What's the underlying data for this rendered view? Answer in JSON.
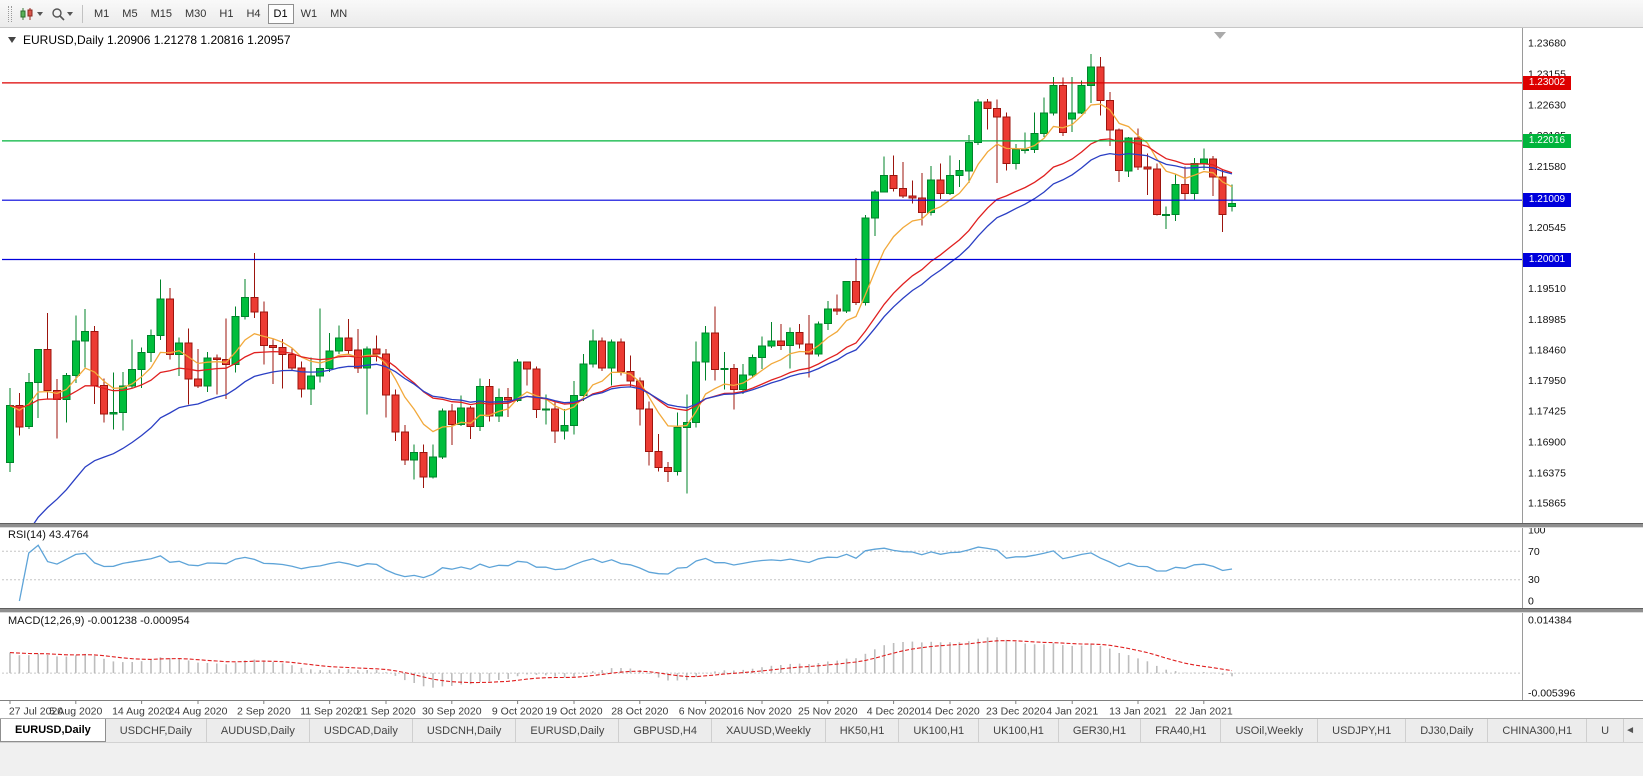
{
  "toolbar": {
    "timeframes": [
      {
        "label": "M1"
      },
      {
        "label": "M5"
      },
      {
        "label": "M15"
      },
      {
        "label": "M30"
      },
      {
        "label": "H1"
      },
      {
        "label": "H4"
      },
      {
        "label": "D1",
        "active": true
      },
      {
        "label": "W1"
      },
      {
        "label": "MN"
      }
    ]
  },
  "chart": {
    "title": "EURUSD,Daily  1.20906 1.21278 1.20816 1.20957",
    "symbol": "EURUSD",
    "period": "Daily",
    "ohlc": {
      "open": "1.20906",
      "high": "1.21278",
      "low": "1.20816",
      "close": "1.20957"
    },
    "price_axis": {
      "labels": [
        "1.23680",
        "1.23155",
        "1.22630",
        "1.22105",
        "1.21580",
        "1.21055",
        "1.20545",
        "1.20020",
        "1.19510",
        "1.18985",
        "1.18460",
        "1.17950",
        "1.17425",
        "1.16900",
        "1.16375",
        "1.15865"
      ]
    },
    "hlines": [
      {
        "label": "1.23002",
        "price": 1.23002,
        "color": "#DD0000"
      },
      {
        "label": "1.22016",
        "price": 1.22016,
        "color": "#00B43C"
      },
      {
        "label": "1.21009",
        "price": 1.21009,
        "color": "#0000DC"
      },
      {
        "label": "1.20001",
        "price": 1.20001,
        "color": "#0000DC"
      }
    ],
    "date_ticks": [
      {
        "label": "27 Jul 2020",
        "i": 0
      },
      {
        "label": "5 Aug 2020",
        "i": 7
      },
      {
        "label": "14 Aug 2020",
        "i": 14
      },
      {
        "label": "24 Aug 2020",
        "i": 20
      },
      {
        "label": "2 Sep 2020",
        "i": 27
      },
      {
        "label": "11 Sep 2020",
        "i": 34
      },
      {
        "label": "21 Sep 2020",
        "i": 40
      },
      {
        "label": "30 Sep 2020",
        "i": 47
      },
      {
        "label": "9 Oct 2020",
        "i": 54
      },
      {
        "label": "19 Oct 2020",
        "i": 60
      },
      {
        "label": "28 Oct 2020",
        "i": 67
      },
      {
        "label": "6 Nov 2020",
        "i": 74
      },
      {
        "label": "16 Nov 2020",
        "i": 80
      },
      {
        "label": "25 Nov 2020",
        "i": 87
      },
      {
        "label": "4 Dec 2020",
        "i": 94
      },
      {
        "label": "14 Dec 2020",
        "i": 100
      },
      {
        "label": "23 Dec 2020",
        "i": 107
      },
      {
        "label": "4 Jan 2021",
        "i": 113
      },
      {
        "label": "13 Jan 2021",
        "i": 120
      },
      {
        "label": "22 Jan 2021",
        "i": 127
      }
    ]
  },
  "indicators": {
    "rsi": {
      "label": "RSI(14) 43.4764",
      "period": 14,
      "value": 43.4764,
      "scale": [
        "100",
        "70",
        "30",
        "0"
      ],
      "levels": [
        70,
        30
      ]
    },
    "macd": {
      "label": "MACD(12,26,9) -0.001238 -0.000954",
      "fast": 12,
      "slow": 26,
      "signal": 9,
      "value": -0.001238,
      "signal_value": -0.000954,
      "scale_top": "0.014384",
      "scale_bottom": "-0.005396"
    }
  },
  "chart_data": {
    "type": "candlestick",
    "symbol": "EURUSD",
    "timeframe": "Daily",
    "price_range": [
      1.15526,
      1.23901
    ],
    "moving_averages": [
      {
        "name": "fast",
        "kind": "ema",
        "period": 8,
        "color": "#F2A93B",
        "seed": null
      },
      {
        "name": "medium",
        "kind": "ema",
        "period": 20,
        "color": "#E02020",
        "seed": null
      },
      {
        "name": "slow",
        "kind": "ema",
        "period": 25,
        "color": "#2B3FC4",
        "seed": 1.148
      }
    ],
    "candles": [
      [
        "2020-07-27",
        1.1655,
        1.1782,
        1.1639,
        1.1752
      ],
      [
        "2020-07-28",
        1.1752,
        1.1773,
        1.1701,
        1.1716
      ],
      [
        "2020-07-29",
        1.1716,
        1.1807,
        1.1712,
        1.1791
      ],
      [
        "2020-07-30",
        1.1791,
        1.1848,
        1.1731,
        1.1847
      ],
      [
        "2020-07-31",
        1.1847,
        1.1909,
        1.1762,
        1.1778
      ],
      [
        "2020-08-03",
        1.1778,
        1.1797,
        1.1696,
        1.1762
      ],
      [
        "2020-08-04",
        1.1762,
        1.1807,
        1.1723,
        1.1803
      ],
      [
        "2020-08-05",
        1.1803,
        1.1905,
        1.179,
        1.1862
      ],
      [
        "2020-08-06",
        1.1862,
        1.1916,
        1.1817,
        1.1878
      ],
      [
        "2020-08-07",
        1.1878,
        1.1887,
        1.1755,
        1.1786
      ],
      [
        "2020-08-10",
        1.1786,
        1.1798,
        1.1723,
        1.1738
      ],
      [
        "2020-08-11",
        1.1738,
        1.1808,
        1.1711,
        1.174
      ],
      [
        "2020-08-12",
        1.174,
        1.1809,
        1.171,
        1.1785
      ],
      [
        "2020-08-13",
        1.1785,
        1.1864,
        1.1781,
        1.1813
      ],
      [
        "2020-08-14",
        1.1813,
        1.1851,
        1.1782,
        1.1842
      ],
      [
        "2020-08-17",
        1.1842,
        1.1881,
        1.1826,
        1.1871
      ],
      [
        "2020-08-18",
        1.1871,
        1.1966,
        1.1863,
        1.1933
      ],
      [
        "2020-08-19",
        1.1933,
        1.1952,
        1.183,
        1.1839
      ],
      [
        "2020-08-20",
        1.1839,
        1.1868,
        1.1802,
        1.1858
      ],
      [
        "2020-08-21",
        1.1858,
        1.1883,
        1.1754,
        1.1797
      ],
      [
        "2020-08-24",
        1.1797,
        1.1848,
        1.1782,
        1.1785
      ],
      [
        "2020-08-25",
        1.1785,
        1.1843,
        1.1775,
        1.1833
      ],
      [
        "2020-08-26",
        1.1833,
        1.1839,
        1.1771,
        1.183
      ],
      [
        "2020-08-27",
        1.183,
        1.19,
        1.1763,
        1.1822
      ],
      [
        "2020-08-28",
        1.1822,
        1.192,
        1.1808,
        1.1903
      ],
      [
        "2020-08-31",
        1.1903,
        1.1967,
        1.1898,
        1.1936
      ],
      [
        "2020-09-01",
        1.1936,
        1.2011,
        1.1901,
        1.1911
      ],
      [
        "2020-09-02",
        1.1911,
        1.1929,
        1.1822,
        1.1854
      ],
      [
        "2020-09-03",
        1.1854,
        1.1864,
        1.1789,
        1.1851
      ],
      [
        "2020-09-04",
        1.1851,
        1.1865,
        1.1781,
        1.1839
      ],
      [
        "2020-09-07",
        1.1839,
        1.1849,
        1.1812,
        1.1816
      ],
      [
        "2020-09-08",
        1.1816,
        1.1827,
        1.1766,
        1.178
      ],
      [
        "2020-09-09",
        1.178,
        1.1834,
        1.1753,
        1.1802
      ],
      [
        "2020-09-10",
        1.1802,
        1.1917,
        1.1791,
        1.1815
      ],
      [
        "2020-09-11",
        1.1815,
        1.1875,
        1.1809,
        1.1845
      ],
      [
        "2020-09-14",
        1.1845,
        1.1888,
        1.184,
        1.1867
      ],
      [
        "2020-09-15",
        1.1867,
        1.1899,
        1.1838,
        1.1846
      ],
      [
        "2020-09-16",
        1.1846,
        1.1882,
        1.1807,
        1.1816
      ],
      [
        "2020-09-17",
        1.1816,
        1.1852,
        1.1737,
        1.1848
      ],
      [
        "2020-09-18",
        1.1848,
        1.1871,
        1.1827,
        1.184
      ],
      [
        "2020-09-21",
        1.184,
        1.1848,
        1.1732,
        1.177
      ],
      [
        "2020-09-22",
        1.177,
        1.1779,
        1.1692,
        1.1707
      ],
      [
        "2020-09-23",
        1.1707,
        1.1719,
        1.1651,
        1.166
      ],
      [
        "2020-09-24",
        1.166,
        1.1686,
        1.1626,
        1.1672
      ],
      [
        "2020-09-25",
        1.1672,
        1.1686,
        1.1612,
        1.1631
      ],
      [
        "2020-09-28",
        1.1631,
        1.1686,
        1.1628,
        1.1665
      ],
      [
        "2020-09-29",
        1.1665,
        1.1747,
        1.1661,
        1.1743
      ],
      [
        "2020-09-30",
        1.1743,
        1.1755,
        1.1685,
        1.172
      ],
      [
        "2020-10-01",
        1.172,
        1.1769,
        1.1717,
        1.1748
      ],
      [
        "2020-10-02",
        1.1748,
        1.1751,
        1.1695,
        1.1716
      ],
      [
        "2020-10-05",
        1.1716,
        1.1798,
        1.1709,
        1.1784
      ],
      [
        "2020-10-06",
        1.1784,
        1.1797,
        1.1725,
        1.1734
      ],
      [
        "2020-10-07",
        1.1734,
        1.1781,
        1.1724,
        1.1766
      ],
      [
        "2020-10-08",
        1.1766,
        1.1782,
        1.1733,
        1.1761
      ],
      [
        "2020-10-09",
        1.1761,
        1.1831,
        1.1758,
        1.1826
      ],
      [
        "2020-10-12",
        1.1826,
        1.1827,
        1.1786,
        1.1814
      ],
      [
        "2020-10-13",
        1.1814,
        1.1818,
        1.1731,
        1.1745
      ],
      [
        "2020-10-14",
        1.1745,
        1.1771,
        1.172,
        1.1746
      ],
      [
        "2020-10-15",
        1.1746,
        1.1758,
        1.1688,
        1.1709
      ],
      [
        "2020-10-16",
        1.1709,
        1.1746,
        1.1694,
        1.1718
      ],
      [
        "2020-10-19",
        1.1718,
        1.1794,
        1.1703,
        1.1769
      ],
      [
        "2020-10-20",
        1.1769,
        1.184,
        1.176,
        1.1823
      ],
      [
        "2020-10-21",
        1.1823,
        1.1881,
        1.1817,
        1.1862
      ],
      [
        "2020-10-22",
        1.1862,
        1.1868,
        1.1811,
        1.1816
      ],
      [
        "2020-10-23",
        1.1816,
        1.1864,
        1.1786,
        1.186
      ],
      [
        "2020-10-26",
        1.186,
        1.1866,
        1.1803,
        1.181
      ],
      [
        "2020-10-27",
        1.181,
        1.1837,
        1.1783,
        1.1794
      ],
      [
        "2020-10-28",
        1.1794,
        1.18,
        1.1718,
        1.1746
      ],
      [
        "2020-10-29",
        1.1746,
        1.1759,
        1.165,
        1.1674
      ],
      [
        "2020-10-30",
        1.1674,
        1.1704,
        1.164,
        1.1647
      ],
      [
        "2020-11-02",
        1.1647,
        1.1656,
        1.1622,
        1.164
      ],
      [
        "2020-11-03",
        1.164,
        1.174,
        1.1633,
        1.1715
      ],
      [
        "2020-11-04",
        1.1715,
        1.1771,
        1.1603,
        1.1723
      ],
      [
        "2020-11-05",
        1.1723,
        1.1861,
        1.1715,
        1.1826
      ],
      [
        "2020-11-06",
        1.1826,
        1.1887,
        1.1795,
        1.1875
      ],
      [
        "2020-11-09",
        1.1875,
        1.192,
        1.1795,
        1.1813
      ],
      [
        "2020-11-10",
        1.1813,
        1.1843,
        1.1779,
        1.1815
      ],
      [
        "2020-11-11",
        1.1815,
        1.1823,
        1.1745,
        1.1779
      ],
      [
        "2020-11-12",
        1.1779,
        1.1823,
        1.1772,
        1.1804
      ],
      [
        "2020-11-13",
        1.1804,
        1.1839,
        1.1799,
        1.1834
      ],
      [
        "2020-11-16",
        1.1834,
        1.1869,
        1.1814,
        1.1853
      ],
      [
        "2020-11-17",
        1.1853,
        1.1894,
        1.185,
        1.1862
      ],
      [
        "2020-11-18",
        1.1862,
        1.1891,
        1.1846,
        1.1854
      ],
      [
        "2020-11-19",
        1.1854,
        1.1885,
        1.1815,
        1.1876
      ],
      [
        "2020-11-20",
        1.1876,
        1.1891,
        1.1849,
        1.1857
      ],
      [
        "2020-11-23",
        1.1857,
        1.1906,
        1.18,
        1.184
      ],
      [
        "2020-11-24",
        1.184,
        1.1895,
        1.1835,
        1.1891
      ],
      [
        "2020-11-25",
        1.1891,
        1.193,
        1.188,
        1.1916
      ],
      [
        "2020-11-26",
        1.1916,
        1.1941,
        1.1906,
        1.1913
      ],
      [
        "2020-11-27",
        1.1913,
        1.1964,
        1.1909,
        1.1963
      ],
      [
        "2020-11-30",
        1.1963,
        1.2003,
        1.1923,
        1.1927
      ],
      [
        "2020-12-01",
        1.1927,
        1.2076,
        1.1922,
        1.2071
      ],
      [
        "2020-12-02",
        1.2071,
        1.2118,
        1.204,
        1.2115
      ],
      [
        "2020-12-03",
        1.2115,
        1.2175,
        1.2114,
        1.2143
      ],
      [
        "2020-12-04",
        1.2143,
        1.2177,
        1.2116,
        1.2121
      ],
      [
        "2020-12-07",
        1.2121,
        1.2166,
        1.2105,
        1.2108
      ],
      [
        "2020-12-08",
        1.2108,
        1.2134,
        1.2095,
        1.2105
      ],
      [
        "2020-12-09",
        1.2105,
        1.2147,
        1.2058,
        1.208
      ],
      [
        "2020-12-10",
        1.208,
        1.2159,
        1.2075,
        1.2135
      ],
      [
        "2020-12-11",
        1.2135,
        1.2163,
        1.2103,
        1.2112
      ],
      [
        "2020-12-14",
        1.2112,
        1.2177,
        1.211,
        1.2143
      ],
      [
        "2020-12-15",
        1.2143,
        1.2169,
        1.2123,
        1.2151
      ],
      [
        "2020-12-16",
        1.2151,
        1.2212,
        1.213,
        1.2199
      ],
      [
        "2020-12-17",
        1.2199,
        1.2273,
        1.2195,
        1.2268
      ],
      [
        "2020-12-18",
        1.2268,
        1.2273,
        1.2221,
        1.2257
      ],
      [
        "2020-12-21",
        1.2257,
        1.2272,
        1.213,
        1.2242
      ],
      [
        "2020-12-22",
        1.2242,
        1.225,
        1.2151,
        1.2163
      ],
      [
        "2020-12-23",
        1.2163,
        1.2196,
        1.2153,
        1.2187
      ],
      [
        "2020-12-24",
        1.2187,
        1.2216,
        1.218,
        1.2187
      ],
      [
        "2020-12-28",
        1.2187,
        1.225,
        1.2181,
        1.2214
      ],
      [
        "2020-12-29",
        1.2214,
        1.2275,
        1.2208,
        1.2249
      ],
      [
        "2020-12-30",
        1.2249,
        1.231,
        1.2245,
        1.2296
      ],
      [
        "2020-12-31",
        1.2296,
        1.2309,
        1.221,
        1.2216
      ],
      [
        "2021-01-04",
        1.2239,
        1.231,
        1.2217,
        1.2249
      ],
      [
        "2021-01-05",
        1.2249,
        1.2304,
        1.2247,
        1.2296
      ],
      [
        "2021-01-06",
        1.2296,
        1.2349,
        1.2266,
        1.2327
      ],
      [
        "2021-01-07",
        1.2327,
        1.2344,
        1.2245,
        1.227
      ],
      [
        "2021-01-08",
        1.227,
        1.2285,
        1.2193,
        1.222
      ],
      [
        "2021-01-11",
        1.222,
        1.2223,
        1.2132,
        1.2151
      ],
      [
        "2021-01-12",
        1.2151,
        1.2208,
        1.214,
        1.2207
      ],
      [
        "2021-01-13",
        1.2207,
        1.2223,
        1.2152,
        1.2157
      ],
      [
        "2021-01-14",
        1.2157,
        1.218,
        1.211,
        1.2154
      ],
      [
        "2021-01-15",
        1.2154,
        1.2163,
        1.2075,
        1.2077
      ],
      [
        "2021-01-18",
        1.2077,
        1.209,
        1.2052,
        1.2077
      ],
      [
        "2021-01-19",
        1.2077,
        1.2145,
        1.2066,
        1.2128
      ],
      [
        "2021-01-20",
        1.2128,
        1.2158,
        1.2101,
        1.2112
      ],
      [
        "2021-01-21",
        1.2112,
        1.2173,
        1.2102,
        1.2163
      ],
      [
        "2021-01-22",
        1.2163,
        1.2189,
        1.2152,
        1.2171
      ],
      [
        "2021-01-25",
        1.2171,
        1.2176,
        1.2108,
        1.214
      ],
      [
        "2021-01-26",
        1.214,
        1.2152,
        1.2047,
        1.2077
      ],
      [
        "2021-01-27",
        1.20906,
        1.21278,
        1.20816,
        1.20957
      ]
    ]
  },
  "tabs": [
    {
      "label": "EURUSD,Daily",
      "active": true
    },
    {
      "label": "USDCHF,Daily"
    },
    {
      "label": "AUDUSD,Daily"
    },
    {
      "label": "USDCAD,Daily"
    },
    {
      "label": "USDCNH,Daily"
    },
    {
      "label": "EURUSD,Daily"
    },
    {
      "label": "GBPUSD,H4"
    },
    {
      "label": "XAUUSD,Weekly"
    },
    {
      "label": "HK50,H1"
    },
    {
      "label": "UK100,H1"
    },
    {
      "label": "UK100,H1"
    },
    {
      "label": "GER30,H1"
    },
    {
      "label": "FRA40,H1"
    },
    {
      "label": "USOil,Weekly"
    },
    {
      "label": "USDJPY,H1"
    },
    {
      "label": "DJ30,Daily"
    },
    {
      "label": "CHINA300,H1"
    },
    {
      "label": "U"
    }
  ],
  "tabbar": {
    "scroll_left": "◄"
  },
  "colors": {
    "candle_up_fill": "#00BE3C",
    "candle_up_edge": "#00832A",
    "candle_down_fill": "#EC3B33",
    "candle_down_edge": "#9C150E",
    "rsi_line": "#5EA4D8",
    "macd_hist": "#BDBDBD",
    "macd_signal": "#E02020",
    "level_dash": "#C6C6C6",
    "axis_text": "#111111",
    "date_text": "#3A3A3A",
    "separator": "#8F8F8F"
  }
}
